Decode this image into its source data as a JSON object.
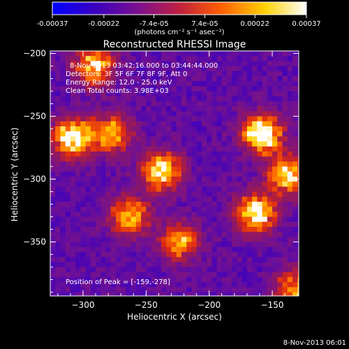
{
  "colorbar": {
    "ticks": [
      "-0.00037",
      "-0.00022",
      "-7.4e-05",
      "7.4e-05",
      "0.00022",
      "0.00037"
    ],
    "tick_values": [
      -0.00037,
      -0.00022,
      -7.4e-05,
      7.4e-05,
      0.00022,
      0.00037
    ],
    "range": [
      -0.00037,
      0.00037
    ],
    "unit": "(photons cm⁻² s⁻¹ asec⁻²)",
    "stops": [
      "#0000ff",
      "#3a00c0",
      "#7a1090",
      "#c02040",
      "#ff6000",
      "#ffd000",
      "#ffffff"
    ]
  },
  "info": {
    "time": "8-Nov-2013 03:42:16.000 to 03:44:44.000",
    "detectors": "Detectors: 3F 5F 6F 7F 8F 9F, Att 0",
    "energy": "Energy Range: 12.0 - 25.0 keV",
    "clean": "Clean    Total counts: 3.98E+03",
    "peak": "Position of Peak = [-159,-278]"
  },
  "footer_date": "8-Nov-2013 06:01",
  "chart_data": {
    "type": "heatmap",
    "title": "Reconstructed RHESSI Image",
    "xlabel": "Heliocentric X (arcsec)",
    "ylabel": "Heliocentric Y (arcsec)",
    "xlim": [
      -326,
      -129
    ],
    "ylim": [
      -393,
      -198
    ],
    "x_ticks": [
      -300,
      -250,
      -200,
      -150
    ],
    "y_ticks": [
      -200,
      -250,
      -300,
      -350
    ],
    "peak": [
      -159,
      -278
    ],
    "sources": [
      {
        "x": -310,
        "y": -265,
        "intensity": 0.00037
      },
      {
        "x": -279,
        "y": -262,
        "intensity": 0.0002
      },
      {
        "x": -240,
        "y": -292,
        "intensity": 0.0003
      },
      {
        "x": -265,
        "y": -328,
        "intensity": 0.00024
      },
      {
        "x": -226,
        "y": -348,
        "intensity": 0.00018
      },
      {
        "x": -160,
        "y": -262,
        "intensity": 0.00037
      },
      {
        "x": -165,
        "y": -325,
        "intensity": 0.00033
      },
      {
        "x": -293,
        "y": -208,
        "intensity": 0.00025
      },
      {
        "x": -140,
        "y": -295,
        "intensity": 0.00026
      },
      {
        "x": -134,
        "y": -385,
        "intensity": 0.00018
      }
    ]
  }
}
